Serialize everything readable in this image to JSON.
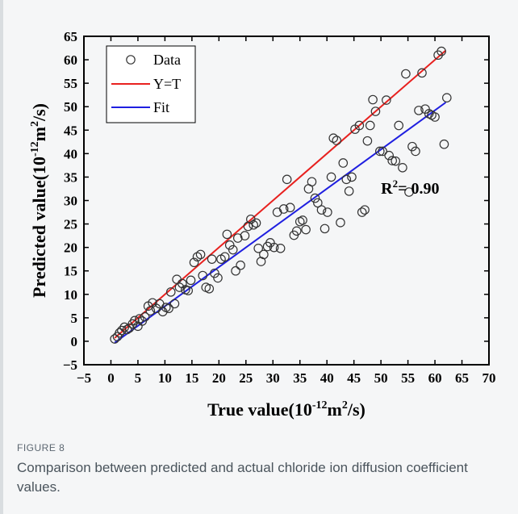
{
  "figure": {
    "label": "FIGURE 8",
    "caption": "Comparison between predicted and actual chloride ion diffusion coefficient values."
  },
  "chart_data": {
    "type": "scatter",
    "xlabel_main": "True value(10",
    "xlabel_exp": "-12",
    "xlabel_unit": "m",
    "xlabel_unit_exp": "2",
    "xlabel_tail": "/s)",
    "ylabel_main": "Predicted value(10",
    "ylabel_exp": "-12",
    "ylabel_unit": "m",
    "ylabel_unit_exp": "2",
    "ylabel_tail": "/s)",
    "xlim": [
      -5,
      70
    ],
    "ylim": [
      -5,
      65
    ],
    "xticks": [
      -5,
      0,
      5,
      10,
      15,
      20,
      25,
      30,
      35,
      40,
      45,
      50,
      55,
      60,
      65,
      70
    ],
    "yticks": [
      -5,
      0,
      5,
      10,
      15,
      20,
      25,
      30,
      35,
      40,
      45,
      50,
      55,
      60,
      65
    ],
    "grid": false,
    "legend_position": "top-left",
    "annotation": {
      "base": "R",
      "sup": "2",
      "text": "= 0.90",
      "x": 50,
      "y": 31.5
    },
    "colors": {
      "ideal": "#e8211f",
      "fit": "#1f1fe0",
      "points": "#333333"
    },
    "series": [
      {
        "name": "Data",
        "kind": "points",
        "x": [
          0.7,
          1.2,
          1.6,
          2.0,
          2.5,
          3.0,
          3.4,
          4.0,
          4.4,
          5.0,
          5.3,
          5.8,
          6.3,
          6.9,
          7.3,
          7.7,
          8.4,
          9.0,
          9.6,
          10.2,
          10.7,
          11.1,
          11.8,
          12.2,
          12.7,
          13.2,
          13.8,
          14.3,
          14.8,
          15.4,
          16.0,
          16.6,
          17.0,
          17.6,
          18.2,
          18.7,
          19.2,
          19.8,
          20.4,
          21.1,
          21.5,
          22.0,
          22.6,
          23.1,
          23.5,
          24.0,
          24.8,
          25.4,
          25.9,
          26.4,
          26.9,
          27.3,
          27.8,
          28.3,
          29.0,
          29.5,
          30.2,
          30.8,
          31.4,
          32.0,
          32.6,
          33.2,
          33.9,
          34.4,
          35.0,
          35.5,
          36.1,
          36.6,
          37.2,
          37.8,
          38.3,
          39.0,
          39.6,
          40.1,
          40.8,
          41.2,
          41.8,
          42.5,
          43.0,
          43.6,
          44.1,
          44.6,
          45.2,
          46.0,
          46.5,
          47.0,
          47.5,
          48.0,
          48.5,
          49.0,
          49.8,
          50.3,
          51.0,
          51.5,
          52.1,
          52.7,
          53.3,
          54.0,
          54.6,
          55.2,
          55.8,
          56.4,
          57.0,
          57.6,
          58.2,
          58.9,
          59.4,
          60.0,
          60.6,
          61.2,
          61.7,
          62.2
        ],
        "y": [
          0.5,
          1.0,
          1.8,
          2.3,
          3.0,
          2.5,
          2.8,
          3.7,
          4.4,
          3.2,
          4.8,
          4.3,
          5.2,
          7.5,
          6.5,
          8.2,
          7.0,
          8.0,
          6.3,
          7.2,
          7.0,
          10.5,
          8.0,
          13.2,
          11.5,
          12.3,
          11.0,
          10.8,
          13.0,
          16.8,
          18.0,
          18.5,
          14.0,
          11.5,
          11.2,
          17.5,
          14.5,
          13.5,
          17.5,
          18.0,
          22.8,
          20.5,
          19.5,
          15.0,
          22.0,
          16.2,
          22.5,
          24.5,
          26.0,
          24.8,
          25.2,
          19.8,
          17.0,
          18.5,
          20.2,
          21.0,
          20.0,
          27.5,
          19.8,
          28.2,
          34.5,
          28.5,
          22.6,
          23.5,
          25.5,
          25.8,
          23.8,
          32.5,
          34.0,
          30.5,
          29.5,
          28.0,
          24.0,
          27.5,
          35.0,
          43.3,
          42.8,
          25.3,
          38.0,
          34.5,
          32.0,
          35.0,
          45.2,
          46.0,
          27.5,
          28.0,
          42.7,
          46.0,
          51.5,
          49.0,
          40.5,
          40.5,
          51.4,
          39.6,
          38.5,
          38.4,
          46.0,
          37.0,
          57.0,
          31.8,
          41.5,
          40.5,
          49.2,
          57.2,
          49.5,
          48.5,
          48.2,
          47.8,
          61.0,
          61.8,
          42.0,
          51.9
        ]
      },
      {
        "name": "Y=T",
        "kind": "line",
        "x": [
          0.7,
          62.0
        ],
        "y": [
          0.7,
          62.0
        ]
      },
      {
        "name": "Fit",
        "kind": "line",
        "x": [
          0.7,
          62.0
        ],
        "y": [
          -0.3,
          50.9
        ]
      }
    ]
  }
}
